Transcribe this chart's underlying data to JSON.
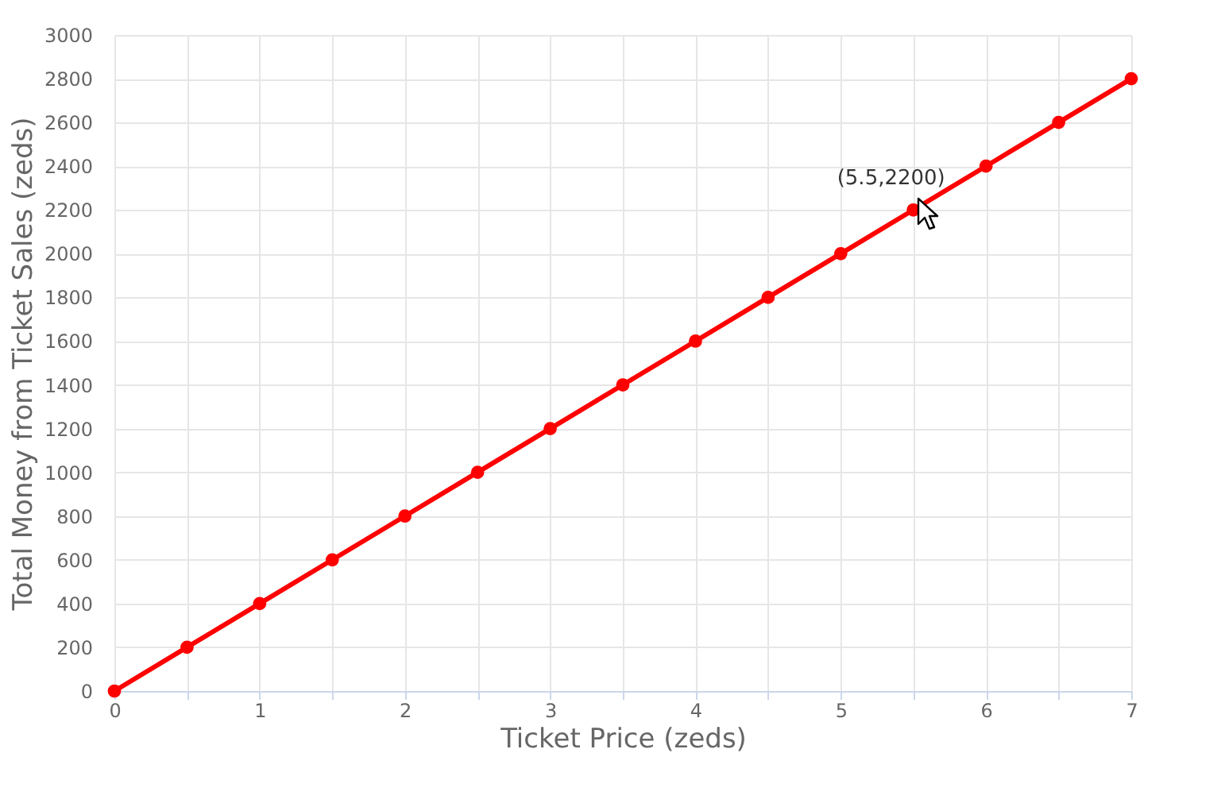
{
  "chart_data": {
    "type": "line",
    "xlabel": "Ticket Price (zeds)",
    "ylabel": "Total Money from Ticket Sales (zeds)",
    "x": [
      0,
      0.5,
      1,
      1.5,
      2,
      2.5,
      3,
      3.5,
      4,
      4.5,
      5,
      5.5,
      6,
      6.5,
      7
    ],
    "series": [
      {
        "color": "#ff0000",
        "values": [
          0,
          200,
          400,
          600,
          800,
          1000,
          1200,
          1400,
          1600,
          1800,
          2000,
          2200,
          2400,
          2600,
          2800
        ]
      }
    ],
    "xlim": [
      0,
      7
    ],
    "xticks": [
      0,
      {
        "value": 0.5,
        "label": null
      },
      1,
      {
        "value": 1.5,
        "label": null
      },
      2,
      {
        "value": 2.5,
        "label": null
      },
      3,
      {
        "value": 3.5,
        "label": null
      },
      4,
      {
        "value": 4.5,
        "label": null
      },
      5,
      {
        "value": 5.5,
        "label": null
      },
      6,
      {
        "value": 6.5,
        "label": null
      },
      7
    ],
    "ylim": [
      0,
      3000
    ],
    "yticks": [
      0,
      200,
      400,
      600,
      800,
      1000,
      1200,
      1400,
      1600,
      1800,
      2000,
      2200,
      2400,
      2600,
      2800,
      3000
    ],
    "grid": true,
    "marker": "circle",
    "line_style": "solid",
    "annotations": [
      {
        "text": "(5.5,2200)",
        "x": 5.5,
        "y": 2200
      }
    ]
  }
}
